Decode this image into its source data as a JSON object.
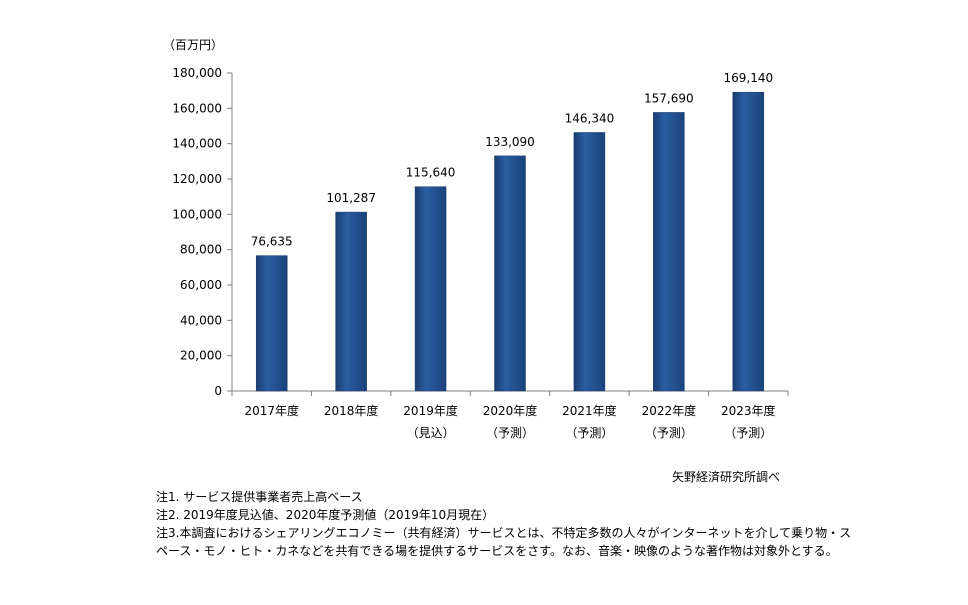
{
  "chart_data": {
    "type": "bar",
    "unit": "（百万円）",
    "categories": [
      [
        "2017年度",
        ""
      ],
      [
        "2018年度",
        ""
      ],
      [
        "2019年度",
        "（見込）"
      ],
      [
        "2020年度",
        "（予測）"
      ],
      [
        "2021年度",
        "（予測）"
      ],
      [
        "2022年度",
        "（予測）"
      ],
      [
        "2023年度",
        "（予測）"
      ]
    ],
    "values": [
      76635,
      101287,
      115640,
      133090,
      146340,
      157690,
      169140
    ],
    "value_labels": [
      "76,635",
      "101,287",
      "115,640",
      "133,090",
      "146,340",
      "157,690",
      "169,140"
    ],
    "y_ticks": [
      0,
      20000,
      40000,
      60000,
      80000,
      100000,
      120000,
      140000,
      160000,
      180000
    ],
    "y_tick_labels": [
      "0",
      "20,000",
      "40,000",
      "60,000",
      "80,000",
      "100,000",
      "120,000",
      "140,000",
      "160,000",
      "180,000"
    ],
    "ylim": [
      0,
      180000
    ],
    "grid": false,
    "legend": "none",
    "colors": {
      "bar": "#1f4e8c",
      "bar_dark": "#1a3c6e",
      "axis": "#808080"
    }
  },
  "source": "矢野経済研究所調べ",
  "notes": [
    "注1. サービス提供事業者売上高ベース",
    "注2. 2019年度見込値、2020年度予測値（2019年10月現在）",
    "注3.本調査におけるシェアリングエコノミー（共有経済）サービスとは、不特定多数の人々がインターネットを介して乗り物・ス",
    "ペース・モノ・ヒト・カネなどを共有できる場を提供するサービスをさす。なお、音楽・映像のような著作物は対象外とする。"
  ]
}
